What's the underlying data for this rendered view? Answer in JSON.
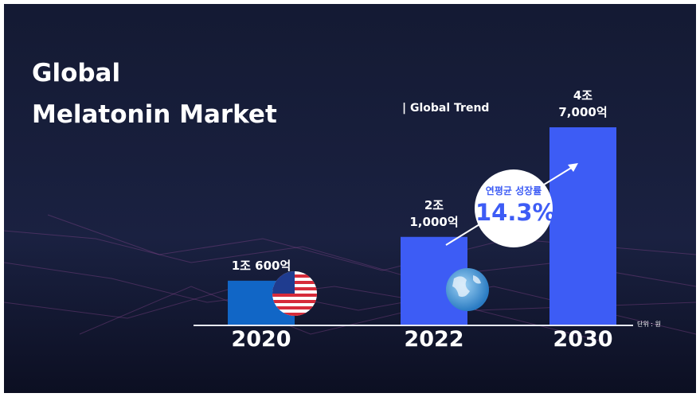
{
  "chart_data": {
    "type": "bar",
    "title": "Global\nMelatonin Market",
    "subtitle": "| Global Trend",
    "categories": [
      "2020",
      "2022",
      "2030"
    ],
    "values": [
      10600,
      21000,
      47000
    ],
    "value_labels": [
      "1조 600억",
      "2조\n1,000억",
      "4조\n7,000억"
    ],
    "colors": [
      "#1166c6",
      "#3d5cf5",
      "#3d5cf5"
    ],
    "annotations": [
      "연평균 성장률",
      "14.3%"
    ],
    "unit_note": "단위 : 원"
  }
}
